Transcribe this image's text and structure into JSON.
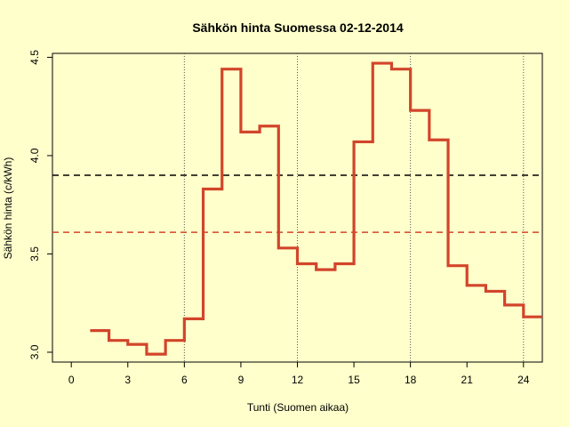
{
  "colors": {
    "background": "#ffffcc",
    "step_line": "#d2452a",
    "hline_black": "#000000",
    "hline_red": "#d2452a",
    "vlines": "#555555"
  },
  "chart_data": {
    "type": "line",
    "step": true,
    "title": "Sähkön hinta Suomessa 02-12-2014",
    "xlabel": "Tunti (Suomen aikaa)",
    "ylabel": "Sähkön hinta (c/kWh)",
    "xlim": [
      -1,
      25
    ],
    "ylim": [
      2.95,
      4.52
    ],
    "xticks": [
      0,
      3,
      6,
      9,
      12,
      15,
      18,
      21,
      24
    ],
    "yticks": [
      "3.0",
      "3.5",
      "4.0",
      "4.5"
    ],
    "grid": false,
    "series": [
      {
        "x": [
          1,
          2,
          3,
          4,
          5,
          6,
          7,
          8,
          9,
          10,
          11,
          12,
          13,
          14,
          15,
          16,
          17,
          18,
          19,
          20,
          21,
          22,
          23,
          24
        ],
        "values": [
          3.11,
          3.06,
          3.04,
          2.99,
          3.06,
          3.17,
          3.83,
          4.44,
          4.12,
          4.15,
          3.53,
          3.45,
          3.42,
          3.45,
          4.07,
          4.47,
          4.44,
          4.23,
          4.08,
          3.44,
          3.34,
          3.31,
          3.24,
          3.18
        ]
      }
    ],
    "hlines": [
      {
        "value": 3.9,
        "style": "dashed",
        "color": "black"
      },
      {
        "value": 3.61,
        "style": "dashed",
        "color": "red"
      }
    ],
    "vlines": [
      6,
      12,
      18,
      24
    ]
  }
}
